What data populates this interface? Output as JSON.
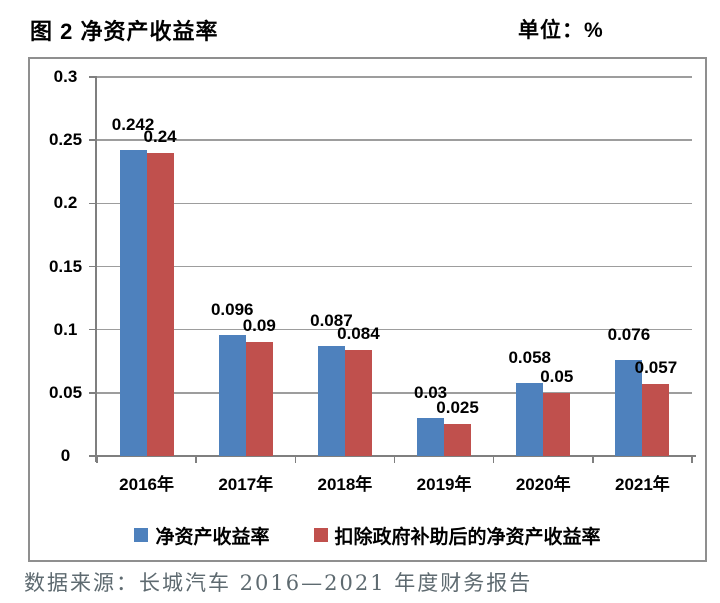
{
  "page": {
    "figure_title": "图 2 净资产收益率",
    "unit_label": "单位：%",
    "source_note": "数据来源：长城汽车 2016—2021 年度财务报告"
  },
  "colors": {
    "series1": "#4E81BD",
    "series2": "#C0504D",
    "gridline": "#9d9d9d",
    "axis": "#7f7f7f",
    "frame_border": "#8f8f8f",
    "text": "#000000",
    "source_text": "#5e6a70"
  },
  "chart_data": {
    "type": "bar",
    "title": "图 2 净资产收益率",
    "xlabel": "",
    "ylabel": "",
    "categories": [
      "2016年",
      "2017年",
      "2018年",
      "2019年",
      "2020年",
      "2021年"
    ],
    "series": [
      {
        "name": "净资产收益率",
        "color_key": "series1",
        "values": [
          0.242,
          0.096,
          0.087,
          0.03,
          0.058,
          0.076
        ],
        "labels": [
          "0.242",
          "0.096",
          "0.087",
          "0.03",
          "0.058",
          "0.076"
        ]
      },
      {
        "name": "扣除政府补助后的净资产收益率",
        "color_key": "series2",
        "values": [
          0.24,
          0.09,
          0.084,
          0.025,
          0.05,
          0.057
        ],
        "labels": [
          "0.24",
          "0.09",
          "0.084",
          "0.025",
          "0.05",
          "0.057"
        ]
      }
    ],
    "ylim": [
      0,
      0.3
    ],
    "ytick_step": 0.05,
    "yticks": [
      "0",
      "0.05",
      "0.1",
      "0.15",
      "0.2",
      "0.25",
      "0.3"
    ],
    "grid": true,
    "data_labels": true,
    "legend_position": "bottom"
  }
}
